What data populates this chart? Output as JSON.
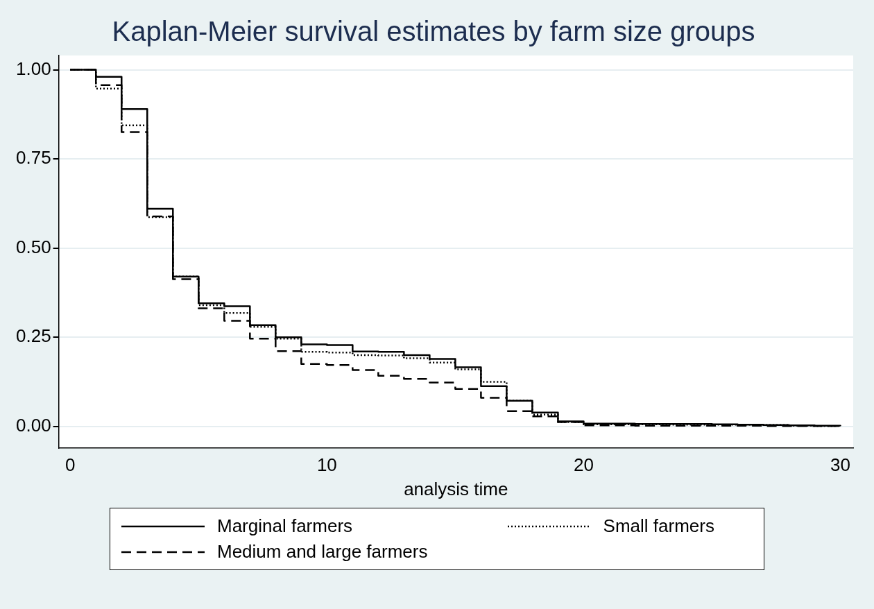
{
  "chart_data": {
    "type": "step",
    "title": "Kaplan-Meier survival estimates by farm size groups",
    "xlabel": "analysis time",
    "x": [
      0,
      1,
      2,
      3,
      4,
      5,
      6,
      7,
      8,
      9,
      10,
      11,
      12,
      13,
      14,
      15,
      16,
      17,
      18,
      19,
      20,
      21,
      22,
      23,
      24,
      25,
      26,
      27,
      28,
      29,
      30
    ],
    "series": [
      {
        "name": "Marginal farmers",
        "color": "#000000",
        "line_style": "solid",
        "values": [
          1,
          0.98,
          0.89,
          0.61,
          0.42,
          0.345,
          0.337,
          0.284,
          0.25,
          0.23,
          0.228,
          0.21,
          0.209,
          0.2,
          0.189,
          0.166,
          0.113,
          0.072,
          0.039,
          0.014,
          0.008,
          0.008,
          0.007,
          0.007,
          0.007,
          0.006,
          0.005,
          0.004,
          0.003,
          0.002,
          0.001
        ]
      },
      {
        "name": "Small farmers",
        "color": "#000000",
        "line_style": "dotted",
        "values": [
          1,
          0.947,
          0.844,
          0.587,
          0.42,
          0.34,
          0.318,
          0.279,
          0.246,
          0.209,
          0.207,
          0.2,
          0.199,
          0.191,
          0.179,
          0.16,
          0.125,
          0.072,
          0.033,
          0.012,
          0.006,
          0.006,
          0.006,
          0.005,
          0.005,
          0.005,
          0.005,
          0.004,
          0.002,
          0.001,
          0
        ]
      },
      {
        "name": "Medium and large farmers",
        "color": "#000000",
        "line_style": "dashed",
        "values": [
          1,
          0.957,
          0.825,
          0.589,
          0.413,
          0.331,
          0.296,
          0.246,
          0.211,
          0.175,
          0.172,
          0.158,
          0.142,
          0.133,
          0.123,
          0.105,
          0.08,
          0.043,
          0.028,
          0.012,
          0.003,
          0.003,
          0.002,
          0.002,
          0.002,
          0.002,
          0.002,
          0.001,
          0.001,
          0.001,
          0
        ]
      }
    ],
    "xlim": [
      -0.45,
      30.5
    ],
    "ylim": [
      -0.06,
      1.04
    ],
    "xticks": [
      0,
      10,
      20,
      30
    ],
    "yticks": [
      {
        "value": 0,
        "label": "0.00"
      },
      {
        "value": 0.25,
        "label": "0.25"
      },
      {
        "value": 0.5,
        "label": "0.50"
      },
      {
        "value": 0.75,
        "label": "0.75"
      },
      {
        "value": 1,
        "label": "1.00"
      }
    ],
    "grid": "y",
    "legend": "bottom"
  }
}
